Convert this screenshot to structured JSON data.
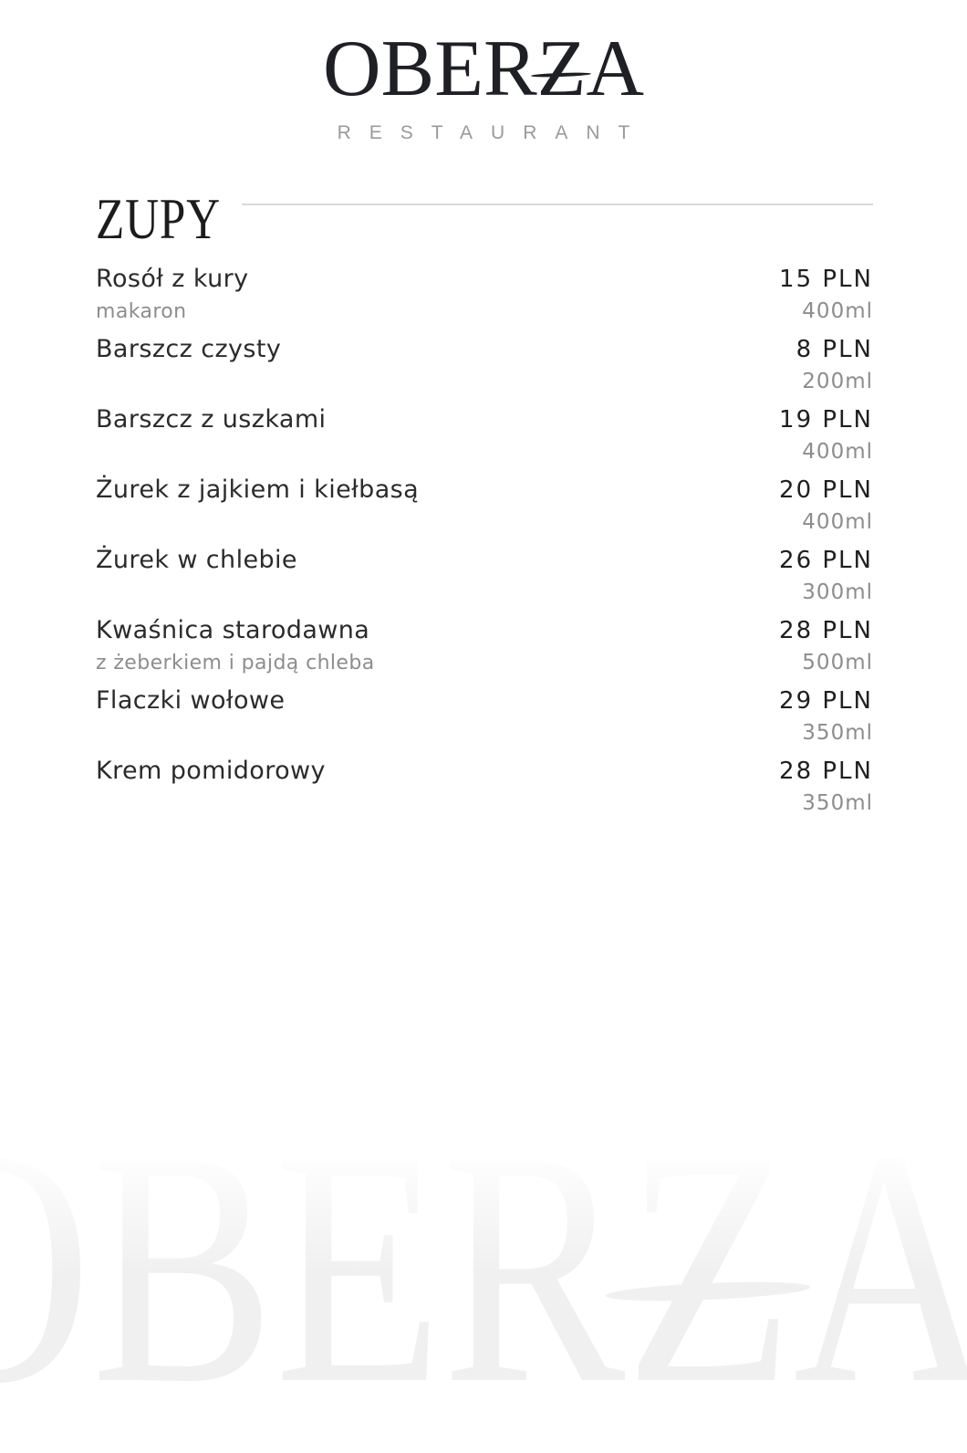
{
  "logo": {
    "full": "OBERŻA",
    "part1": "OBER",
    "part2": "Z",
    "part3": "A",
    "subtitle": "RESTAURANT"
  },
  "section": {
    "title": "ZUPY"
  },
  "menu": {
    "currency": "PLN",
    "items": [
      {
        "name": "Rosół z kury",
        "desc": "makaron",
        "price": "15 PLN",
        "volume": "400ml"
      },
      {
        "name": "Barszcz czysty",
        "desc": "",
        "price": "8 PLN",
        "volume": "200ml"
      },
      {
        "name": "Barszcz z uszkami",
        "desc": "",
        "price": "19 PLN",
        "volume": "400ml"
      },
      {
        "name": "Żurek z jajkiem i kiełbasą",
        "desc": "",
        "price": "20 PLN",
        "volume": "400ml"
      },
      {
        "name": "Żurek w chlebie",
        "desc": "",
        "price": "26 PLN",
        "volume": "300ml"
      },
      {
        "name": "Kwaśnica starodawna",
        "desc": "z żeberkiem i pajdą chleba",
        "price": "28 PLN",
        "volume": "500ml"
      },
      {
        "name": "Flaczki wołowe",
        "desc": "",
        "price": "29 PLN",
        "volume": "350ml"
      },
      {
        "name": "Krem pomidorowy",
        "desc": "",
        "price": "28 PLN",
        "volume": "350ml"
      }
    ]
  },
  "colors": {
    "text": "#2b2b2b",
    "price": "#1f1f1f",
    "muted": "#8d8d8d",
    "divider": "#d9d9d9",
    "logo": "#1e2026",
    "logo_subtitle": "#9a9a9a",
    "watermark": "#f0f0f0",
    "background": "#ffffff"
  }
}
